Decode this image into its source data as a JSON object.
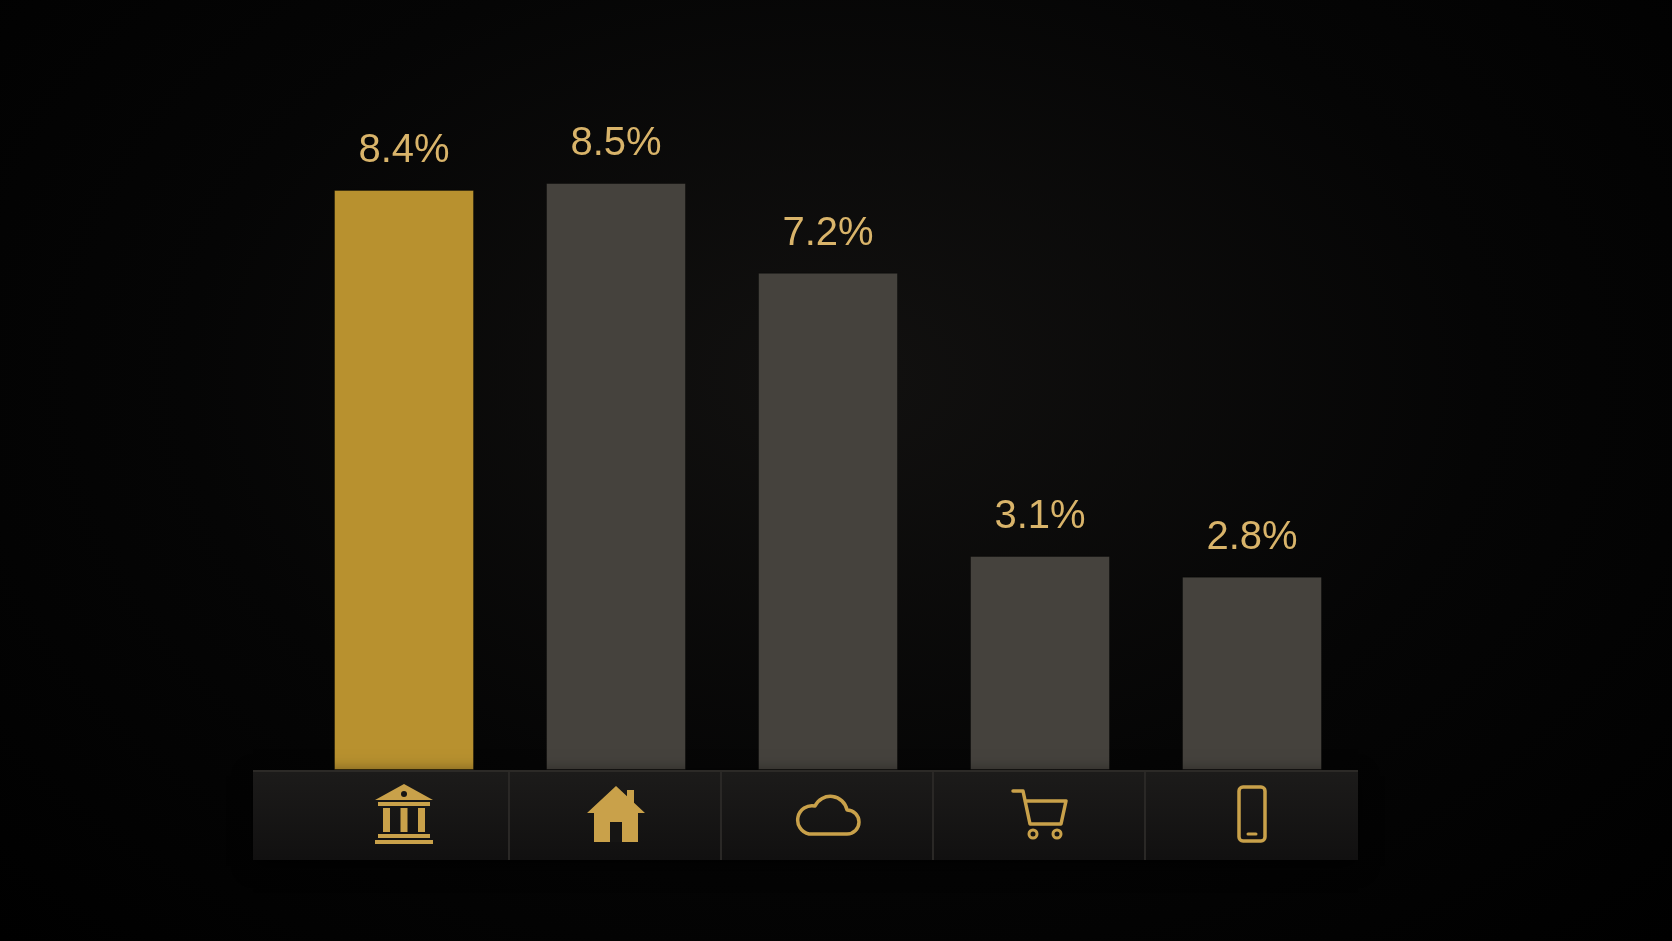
{
  "chart_data": {
    "type": "bar",
    "categories": [
      null,
      null,
      null,
      null,
      null
    ],
    "values": [
      8.4,
      8.5,
      7.2,
      3.1,
      2.8
    ],
    "value_labels": [
      "8.4%",
      "8.5%",
      "7.2%",
      "3.1%",
      "2.8%"
    ],
    "colors": [
      "#b8912f",
      "#45423d",
      "#45423d",
      "#45423d",
      "#45423d"
    ],
    "tick_labels": false
  }
}
